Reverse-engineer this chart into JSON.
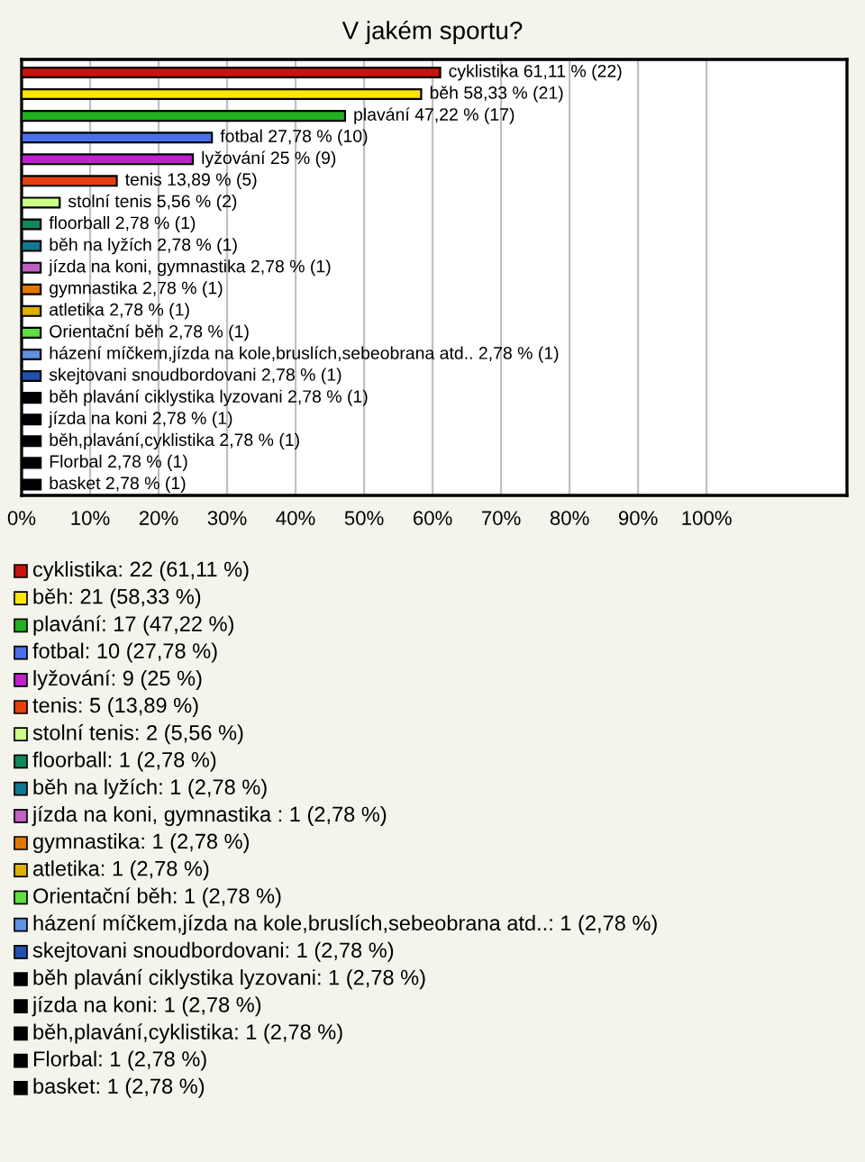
{
  "chart_data": {
    "type": "bar",
    "orientation": "horizontal",
    "title": "V jakém sportu?",
    "categories": [
      "cyklistika",
      "běh",
      "plavání",
      "fotbal",
      "lyžování",
      "tenis",
      "stolní tenis",
      "floorball",
      "běh na lyžích",
      "jízda na koni, gymnastika",
      "gymnastika",
      "atletika",
      "Orientační běh",
      "házení míčkem,jízda na kole,bruslích,sebeobrana atd..",
      "skejtovani snoudbordovani",
      "běh plavání ciklystika lyzovani",
      "jízda na koni",
      "běh,plavání,cyklistika",
      "Florbal",
      "basket"
    ],
    "values": [
      61.11,
      58.33,
      47.22,
      27.78,
      25,
      13.89,
      5.56,
      2.78,
      2.78,
      2.78,
      2.78,
      2.78,
      2.78,
      2.78,
      2.78,
      2.78,
      2.78,
      2.78,
      2.78,
      2.78
    ],
    "colors": [
      "#c8140c",
      "#ffe600",
      "#20b020",
      "#4a70ec",
      "#c020d0",
      "#e8400c",
      "#ccff88",
      "#10885a",
      "#107890",
      "#c060c0",
      "#e07800",
      "#e0b000",
      "#60e040",
      "#6090e0",
      "#2050b0",
      "#000000",
      "#000000",
      "#000000",
      "#000000",
      "#000000"
    ],
    "value_labels": [
      "61,11 % (22)",
      "58,33 % (21)",
      "47,22 % (17)",
      "27,78 % (10)",
      "25 % (9)",
      "13,89 % (5)",
      "5,56 % (2)",
      "2,78 % (1)",
      "2,78 % (1)",
      "2,78 % (1)",
      "2,78 % (1)",
      "2,78 % (1)",
      "2,78 % (1)",
      "2,78 % (1)",
      "2,78 % (1)",
      "2,78 % (1)",
      "2,78 % (1)",
      "2,78 % (1)",
      "2,78 % (1)",
      "2,78 % (1)"
    ],
    "xlim": [
      0,
      120.5
    ],
    "xticks": [
      {
        "value": 0,
        "label": "0%"
      },
      {
        "value": 10,
        "label": "10%"
      },
      {
        "value": 20,
        "label": "20%"
      },
      {
        "value": 30,
        "label": "30%"
      },
      {
        "value": 40,
        "label": "40%"
      },
      {
        "value": 50,
        "label": "50%"
      },
      {
        "value": 60,
        "label": "60%"
      },
      {
        "value": 70,
        "label": "70%"
      },
      {
        "value": 80,
        "label": "80%"
      },
      {
        "value": 90,
        "label": "90%"
      },
      {
        "value": 100,
        "label": "100%"
      }
    ],
    "tick_labels": "x",
    "grid": "x",
    "annotations": [
      "cyklistika: 22 (61,11 %)",
      "běh: 21 (58,33 %)",
      "plavání: 17 (47,22 %)",
      "fotbal: 10 (27,78 %)",
      "lyžování: 9 (25 %)",
      "tenis: 5 (13,89 %)",
      "stolní tenis: 2 (5,56 %)",
      "floorball: 1 (2,78 %)",
      "běh na lyžích: 1 (2,78 %)",
      "jízda na koni, gymnastika : 1 (2,78 %)",
      "gymnastika: 1 (2,78 %)",
      "atletika: 1 (2,78 %)",
      "Orientační běh: 1 (2,78 %)",
      "házení míčkem,jízda na kole,bruslích,sebeobrana atd..: 1 (2,78 %)",
      "skejtovani snoudbordovani: 1 (2,78 %)",
      "běh plavání ciklystika lyzovani: 1 (2,78 %)",
      "jízda na koni: 1 (2,78 %)",
      "běh,plavání,cyklistika: 1 (2,78 %)",
      "Florbal: 1 (2,78 %)",
      "basket: 1 (2,78 %)"
    ]
  }
}
